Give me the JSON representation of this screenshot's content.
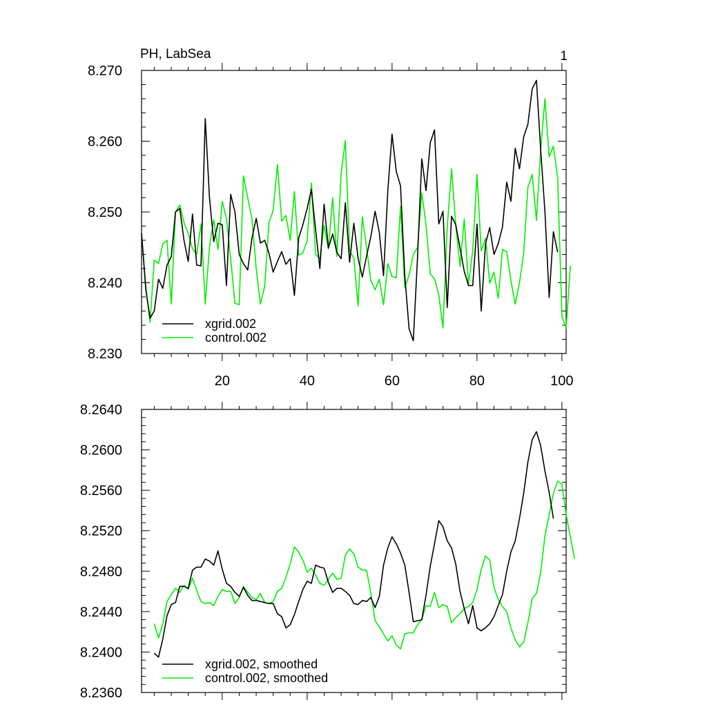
{
  "colors": {
    "xgrid": "#000000",
    "control": "#00ee00"
  },
  "chart_data": [
    {
      "type": "line",
      "title_left": "PH, LabSea",
      "title_right": "1",
      "xlim": [
        1,
        101
      ],
      "ylim": [
        8.23,
        8.27
      ],
      "yticks": [
        8.23,
        8.24,
        8.25,
        8.26,
        8.27
      ],
      "ytick_labels": [
        "8.230",
        "8.240",
        "8.250",
        "8.260",
        "8.270"
      ],
      "xticks": [
        20,
        40,
        60,
        80,
        100
      ],
      "xtick_labels": [
        "20",
        "40",
        "60",
        "80",
        "100"
      ],
      "show_xtick_labels": true,
      "legend_position": "lower-left",
      "series": [
        {
          "name": "xgrid.002",
          "color_key": "xgrid",
          "x_start": 1,
          "values": [
            8.247,
            8.239,
            8.235,
            8.236,
            8.2405,
            8.2392,
            8.2425,
            8.2437,
            8.25,
            8.2505,
            8.246,
            8.243,
            8.2497,
            8.2425,
            8.2424,
            8.2632,
            8.252,
            8.2458,
            8.2484,
            8.2482,
            8.2396,
            8.2525,
            8.25,
            8.244,
            8.2427,
            8.2418,
            8.2463,
            8.2491,
            8.2456,
            8.246,
            8.2442,
            8.2415,
            8.243,
            8.2444,
            8.2426,
            8.2434,
            8.2382,
            8.2463,
            8.2482,
            8.2505,
            8.2532,
            8.2475,
            8.242,
            8.2511,
            8.2449,
            8.2469,
            8.2443,
            8.2434,
            8.2513,
            8.2429,
            8.2484,
            8.2435,
            8.2408,
            8.2438,
            8.2465,
            8.2501,
            8.2471,
            8.241,
            8.253,
            8.261,
            8.2557,
            8.2537,
            8.241,
            8.2335,
            8.2318,
            8.2437,
            8.2575,
            8.253,
            8.2598,
            8.2616,
            8.2483,
            8.2501,
            8.2365,
            8.2494,
            8.2482,
            8.2449,
            8.2416,
            8.2396,
            8.2396,
            8.2483,
            8.236,
            8.2455,
            8.2478,
            8.244,
            8.2455,
            8.2479,
            8.2542,
            8.2515,
            8.259,
            8.2561,
            8.2606,
            8.2624,
            8.2674,
            8.2686,
            8.2588,
            8.25,
            8.2379,
            8.2472,
            8.2443
          ]
        },
        {
          "name": "control.002",
          "color_key": "control",
          "x_start": 1,
          "values": [
            8.247,
            8.2395,
            8.2344,
            8.2432,
            8.2427,
            8.2455,
            8.246,
            8.237,
            8.25,
            8.251,
            8.2485,
            8.247,
            8.2448,
            8.244,
            8.2483,
            8.237,
            8.2451,
            8.2489,
            8.2447,
            8.2515,
            8.249,
            8.2434,
            8.2371,
            8.2369,
            8.2551,
            8.252,
            8.249,
            8.242,
            8.237,
            8.2395,
            8.2485,
            8.2502,
            8.2567,
            8.2487,
            8.2495,
            8.246,
            8.2529,
            8.2439,
            8.2442,
            8.246,
            8.2541,
            8.244,
            8.2434,
            8.2481,
            8.2448,
            8.252,
            8.2437,
            8.2555,
            8.2601,
            8.2445,
            8.2435,
            8.2367,
            8.2493,
            8.2449,
            8.2403,
            8.239,
            8.2405,
            8.2369,
            8.2427,
            8.2409,
            8.2407,
            8.2508,
            8.2393,
            8.2411,
            8.244,
            8.245,
            8.2527,
            8.2483,
            8.2412,
            8.2406,
            8.2383,
            8.2336,
            8.2479,
            8.2561,
            8.2481,
            8.2423,
            8.249,
            8.2397,
            8.2445,
            8.2553,
            8.2445,
            8.2463,
            8.2399,
            8.2415,
            8.2378,
            8.2447,
            8.2444,
            8.2403,
            8.237,
            8.24,
            8.2442,
            8.2535,
            8.2553,
            8.2488,
            8.2588,
            8.266,
            8.2578,
            8.2593,
            8.2548,
            8.2352,
            8.2336,
            8.2424
          ]
        }
      ],
      "legend": [
        "xgrid.002",
        "control.002"
      ]
    },
    {
      "type": "line",
      "xlim": [
        1,
        101
      ],
      "ylim": [
        8.236,
        8.264
      ],
      "yticks": [
        8.236,
        8.24,
        8.244,
        8.248,
        8.252,
        8.256,
        8.26,
        8.264
      ],
      "ytick_labels": [
        "8.2360",
        "8.2400",
        "8.2440",
        "8.2480",
        "8.2520",
        "8.2560",
        "8.2600",
        "8.2640"
      ],
      "xticks": [
        20,
        40,
        60,
        80,
        100
      ],
      "show_xtick_labels": false,
      "legend_position": "lower-left",
      "series": [
        {
          "name": "xgrid.002, smoothed",
          "color_key": "xgrid",
          "x_start": 4,
          "values": [
            8.2399,
            8.2395,
            8.2413,
            8.2436,
            8.2447,
            8.2449,
            8.2465,
            8.2465,
            8.2463,
            8.2481,
            8.2484,
            8.2484,
            8.2492,
            8.249,
            8.2486,
            8.25,
            8.2482,
            8.2468,
            8.2465,
            8.2459,
            8.2455,
            8.2464,
            8.2456,
            8.2451,
            8.2451,
            8.245,
            8.2449,
            8.2448,
            8.2448,
            8.2438,
            8.2435,
            8.2424,
            8.2427,
            8.2437,
            8.245,
            8.2462,
            8.247,
            8.2468,
            8.2486,
            8.2484,
            8.2483,
            8.2469,
            8.2459,
            8.2463,
            8.2463,
            8.246,
            8.2456,
            8.2448,
            8.2447,
            8.2451,
            8.245,
            8.2454,
            8.2444,
            8.2455,
            8.2486,
            8.2503,
            8.2514,
            8.2507,
            8.2498,
            8.2486,
            8.2459,
            8.243,
            8.2431,
            8.2432,
            8.2456,
            8.2485,
            8.2507,
            8.253,
            8.2524,
            8.251,
            8.2503,
            8.2487,
            8.246,
            8.2443,
            8.2428,
            8.2446,
            8.2424,
            8.2421,
            8.2424,
            8.2428,
            8.2435,
            8.2446,
            8.2457,
            8.248,
            8.2499,
            8.251,
            8.2532,
            8.2557,
            8.2588,
            8.261,
            8.2618,
            8.2604,
            8.2579,
            8.2558,
            8.2532
          ]
        },
        {
          "name": "control.002, smoothed",
          "color_key": "control",
          "x_start": 4,
          "values": [
            8.2428,
            8.2414,
            8.2428,
            8.245,
            8.2457,
            8.2463,
            8.2459,
            8.2466,
            8.2462,
            8.2473,
            8.2461,
            8.245,
            8.2448,
            8.2449,
            8.2446,
            8.2455,
            8.2462,
            8.246,
            8.246,
            8.2448,
            8.2454,
            8.2465,
            8.2459,
            8.2454,
            8.2452,
            8.2458,
            8.2449,
            8.2448,
            8.245,
            8.246,
            8.2463,
            8.2474,
            8.2487,
            8.2504,
            8.2499,
            8.2491,
            8.2479,
            8.2483,
            8.2476,
            8.2468,
            8.2466,
            8.2472,
            8.2478,
            8.2472,
            8.2473,
            8.2496,
            8.2502,
            8.2497,
            8.2484,
            8.2481,
            8.2481,
            8.2458,
            8.2431,
            8.2425,
            8.2418,
            8.2411,
            8.2416,
            8.2407,
            8.2403,
            8.2418,
            8.2419,
            8.2419,
            8.2427,
            8.2432,
            8.2446,
            8.2445,
            8.2459,
            8.2444,
            8.2447,
            8.2445,
            8.2429,
            8.2434,
            8.2438,
            8.2443,
            8.2445,
            8.2449,
            8.2462,
            8.2482,
            8.2495,
            8.2491,
            8.2464,
            8.2452,
            8.2445,
            8.244,
            8.2424,
            8.2412,
            8.2405,
            8.241,
            8.2429,
            8.2453,
            8.2458,
            8.2479,
            8.2515,
            8.2536,
            8.2557,
            8.2569,
            8.2566,
            8.2536,
            8.2514,
            8.2492
          ]
        }
      ],
      "legend": [
        "xgrid.002, smoothed",
        "control.002, smoothed"
      ]
    }
  ]
}
